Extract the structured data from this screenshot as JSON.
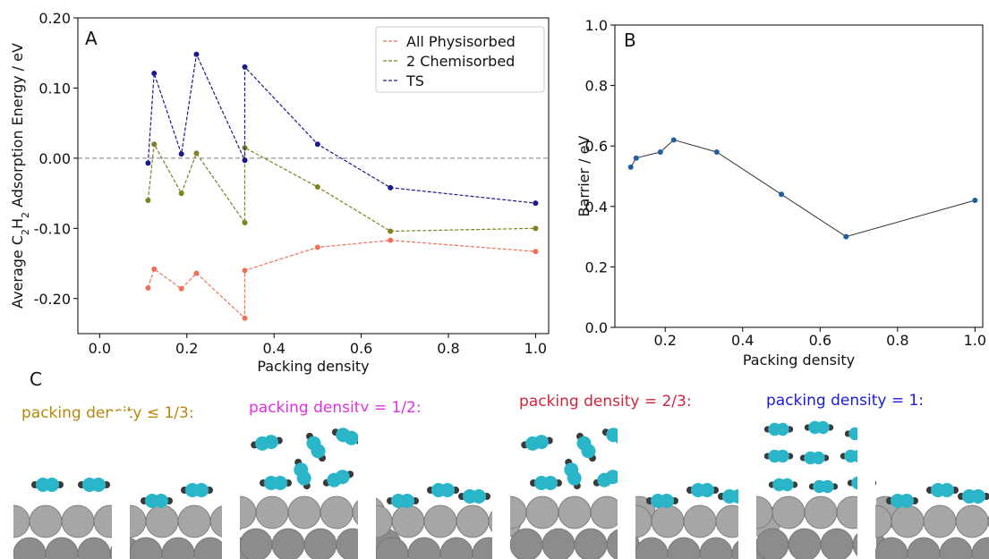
{
  "colors": {
    "physisorbed": "#f0705a",
    "chemisorbed": "#808020",
    "ts": "#1a1a8c",
    "barrier_point": "#1f5f9f",
    "barrier_line": "#333333",
    "zero_line": "#7f7f7f",
    "acetylene_carbon": "#2bb5c9",
    "acetylene_hydrogen": "#3a3a3a",
    "metal_surface": "#a6a6a6",
    "pd_le_third": "#b8860b",
    "pd_half": "#e030e0",
    "pd_two_thirds": "#d0243c",
    "pd_one": "#1a1adc"
  },
  "chart_data": [
    {
      "type": "line",
      "panel_label": "A",
      "xlabel": "Packing density",
      "ylabel_parts": [
        "Average C",
        "2",
        "H",
        "2",
        "  Adsorption Energy / eV"
      ],
      "xlim": [
        -0.05,
        1.03
      ],
      "ylim": [
        -0.25,
        0.2
      ],
      "xticks": [
        0.0,
        0.2,
        0.4,
        0.6,
        0.8,
        1.0
      ],
      "xtick_labels": [
        "0.0",
        "0.2",
        "0.4",
        "0.6",
        "0.8",
        "1.0"
      ],
      "yticks": [
        -0.2,
        -0.1,
        0.0,
        0.1,
        0.2
      ],
      "ytick_labels": [
        "-0.20",
        "-0.10",
        "0.00",
        "0.10",
        "0.20"
      ],
      "zero_line": 0.0,
      "legend_position": "top-right",
      "series": [
        {
          "name": "All Physisorbed",
          "color_key": "physisorbed",
          "x": [
            0.111,
            0.125,
            0.1875,
            0.222,
            0.333,
            0.333,
            0.5,
            0.667,
            1.0
          ],
          "y": [
            -0.185,
            -0.158,
            -0.186,
            -0.164,
            -0.228,
            -0.16,
            -0.127,
            -0.117,
            -0.133
          ]
        },
        {
          "name": "2 Chemisorbed",
          "color_key": "chemisorbed",
          "x": [
            0.111,
            0.125,
            0.1875,
            0.222,
            0.333,
            0.333,
            0.5,
            0.667,
            1.0
          ],
          "y": [
            -0.06,
            0.02,
            -0.05,
            0.007,
            -0.092,
            0.015,
            -0.041,
            -0.104,
            -0.1
          ]
        },
        {
          "name": "TS",
          "color_key": "ts",
          "x": [
            0.111,
            0.125,
            0.1875,
            0.222,
            0.333,
            0.333,
            0.5,
            0.667,
            1.0
          ],
          "y": [
            -0.007,
            0.121,
            0.006,
            0.148,
            -0.003,
            0.13,
            0.02,
            -0.042,
            -0.064
          ]
        }
      ]
    },
    {
      "type": "line",
      "panel_label": "B",
      "xlabel": "Packing density",
      "ylabel": "Barrier / eV",
      "xlim": [
        0.07,
        1.02
      ],
      "ylim": [
        0.0,
        1.0
      ],
      "xticks": [
        0.2,
        0.4,
        0.6,
        0.8,
        1.0
      ],
      "xtick_labels": [
        "0.2",
        "0.4",
        "0.6",
        "0.8",
        "1.0"
      ],
      "yticks": [
        0.0,
        0.2,
        0.4,
        0.6,
        0.8,
        1.0
      ],
      "ytick_labels": [
        "0.0",
        "0.2",
        "0.4",
        "0.6",
        "0.8",
        "1.0"
      ],
      "series": [
        {
          "x": [
            0.111,
            0.125,
            0.1875,
            0.222,
            0.333,
            0.5,
            0.667,
            1.0
          ],
          "y": [
            0.53,
            0.56,
            0.58,
            0.62,
            0.58,
            0.44,
            0.3,
            0.42
          ]
        }
      ]
    }
  ],
  "panel_c": {
    "label": "C",
    "groups": [
      {
        "label": "packing density ≤ 1/3:",
        "color_key": "pd_le_third"
      },
      {
        "label": "packing density = 1/2:",
        "color_key": "pd_half"
      },
      {
        "label": "packing density = 2/3:",
        "color_key": "pd_two_thirds"
      },
      {
        "label": "packing density = 1:",
        "color_key": "pd_one"
      }
    ]
  }
}
